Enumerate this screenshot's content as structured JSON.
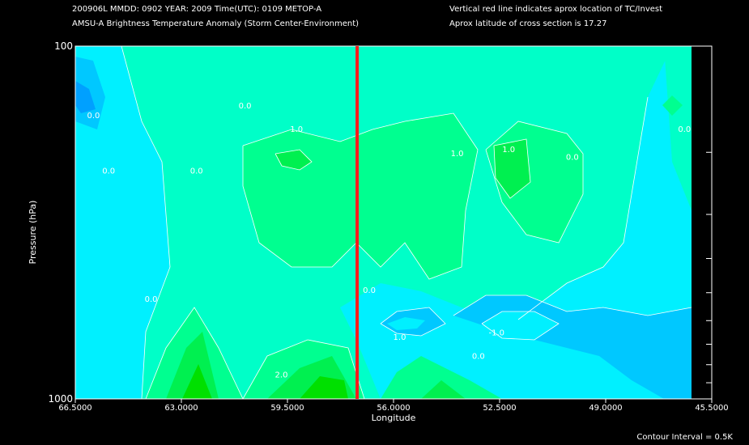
{
  "header": {
    "line1_left": "200906L  MMDD: 0902 YEAR: 2009 Time(UTC): 0109 METOP-A",
    "line2_left": "AMSU-A Brightness Temperature Anomaly (Storm Center-Environment)",
    "line1_right": "Vertical red line indicates aprox location of TC/Invest",
    "line2_right": "Aprox latitude of cross section is 17.27"
  },
  "footer": {
    "contour_interval": "Contour Interval = 0.5K"
  },
  "colors": {
    "background": "#000000",
    "red_line": "#ff1a1a",
    "deep_blue": "#00a0ff",
    "blue": "#00c8ff",
    "cyan": "#00f0ff",
    "aqua_green": "#00ffc8",
    "light_green": "#00ff90",
    "green": "#00f050",
    "bright_green": "#00e000",
    "contour_line": "#ffffff"
  },
  "chart_data": {
    "type": "heatmap",
    "title": "AMSU-A Brightness Temperature Anomaly (Storm Center-Environment)",
    "xlabel": "Longitude",
    "ylabel": "Pressure (hPa)",
    "x_ticks": [
      "66.5000",
      "63.0000",
      "59.5000",
      "56.0000",
      "52.5000",
      "49.0000",
      "45.5000"
    ],
    "y_ticks": [
      "100",
      "1000"
    ],
    "xlim": [
      66.5,
      45.5
    ],
    "ylim": [
      1000,
      100
    ],
    "y_scale": "log",
    "storm_longitude": 57.2,
    "latitude": 17.27,
    "contour_interval_K": 0.5,
    "contour_labels": [
      {
        "text": "0.0",
        "lon": 65.9,
        "p": 160
      },
      {
        "text": "0.0",
        "lon": 65.4,
        "p": 230
      },
      {
        "text": "0.0",
        "lon": 60.9,
        "p": 150
      },
      {
        "text": "1.0",
        "lon": 59.2,
        "p": 175
      },
      {
        "text": "0.0",
        "lon": 62.5,
        "p": 230
      },
      {
        "text": "0.0",
        "lon": 64.0,
        "p": 530
      },
      {
        "text": "0.0",
        "lon": 56.8,
        "p": 500
      },
      {
        "text": "1.0",
        "lon": 55.8,
        "p": 680
      },
      {
        "text": "1.0",
        "lon": 53.9,
        "p": 205
      },
      {
        "text": "1.0",
        "lon": 52.2,
        "p": 200
      },
      {
        "text": "0.0",
        "lon": 50.1,
        "p": 210
      },
      {
        "text": "0.0",
        "lon": 46.4,
        "p": 175
      },
      {
        "text": "-1.0",
        "lon": 52.6,
        "p": 660
      },
      {
        "text": "0.0",
        "lon": 53.2,
        "p": 770
      },
      {
        "text": "2.0",
        "lon": 59.7,
        "p": 870
      }
    ]
  }
}
